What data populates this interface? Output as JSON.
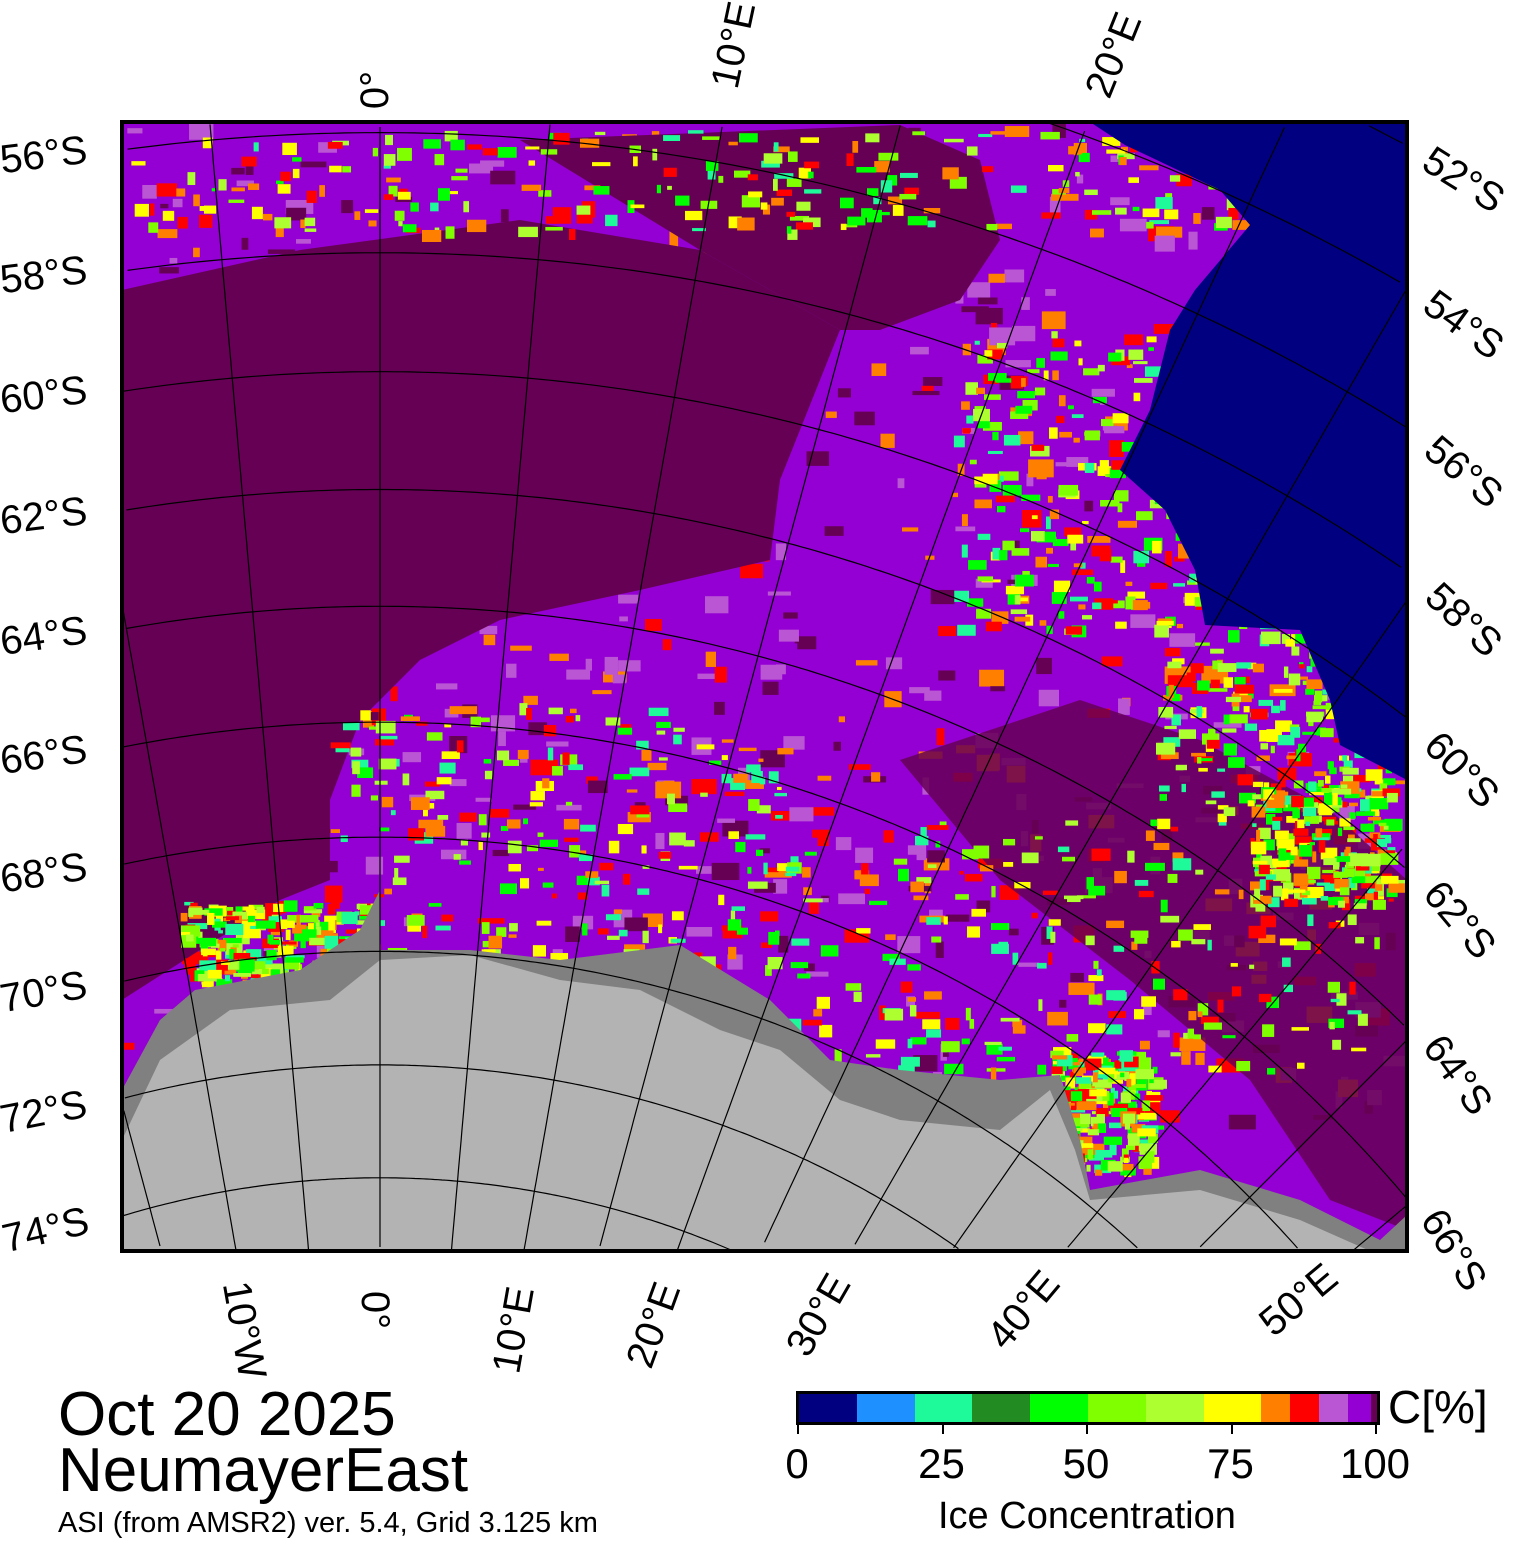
{
  "header": {
    "date": "Oct 20 2025",
    "region": "NeumayerEast",
    "subtitle": "ASI (from AMSR2) ver. 5.4,  Grid 3.125 km"
  },
  "colorbar": {
    "unit": "C[%]",
    "title": "Ice Concentration",
    "ticks": [
      "0",
      "25",
      "50",
      "75",
      "100"
    ],
    "tick_values": [
      0,
      25,
      50,
      75,
      100
    ],
    "bins": [
      {
        "from": 0,
        "to": 10,
        "color": "#000080"
      },
      {
        "from": 10,
        "to": 20,
        "color": "#1E90FF"
      },
      {
        "from": 20,
        "to": 30,
        "color": "#1EFA9A"
      },
      {
        "from": 30,
        "to": 40,
        "color": "#228B22"
      },
      {
        "from": 40,
        "to": 50,
        "color": "#00FF00"
      },
      {
        "from": 50,
        "to": 60,
        "color": "#7FFF00"
      },
      {
        "from": 60,
        "to": 70,
        "color": "#ADFF2F"
      },
      {
        "from": 70,
        "to": 80,
        "color": "#FFFF00"
      },
      {
        "from": 80,
        "to": 85,
        "color": "#FF8000"
      },
      {
        "from": 85,
        "to": 90,
        "color": "#FF0000"
      },
      {
        "from": 90,
        "to": 95,
        "color": "#BA55D3"
      },
      {
        "from": 95,
        "to": 99,
        "color": "#9400D3"
      },
      {
        "from": 99,
        "to": 100,
        "color": "#660055"
      }
    ]
  },
  "map": {
    "colors": {
      "land": "#B3B3B3",
      "ice_shelf": "#808080",
      "open_water": "#000080",
      "full_ice": "#660055",
      "high_ice": "#9400D3"
    },
    "left_lat_labels": [
      "56°S",
      "58°S",
      "60°S",
      "62°S",
      "64°S",
      "66°S",
      "68°S",
      "70°S",
      "72°S",
      "74°S"
    ],
    "right_lat_labels": [
      "52°S",
      "54°S",
      "56°S",
      "58°S",
      "60°S",
      "62°S",
      "64°S",
      "66°S"
    ],
    "top_lon_labels": [
      "0°",
      "10°E",
      "20°E"
    ],
    "bottom_lon_labels": [
      "10°W",
      "0°",
      "10°E",
      "20°E",
      "30°E",
      "40°E",
      "50°E"
    ]
  }
}
